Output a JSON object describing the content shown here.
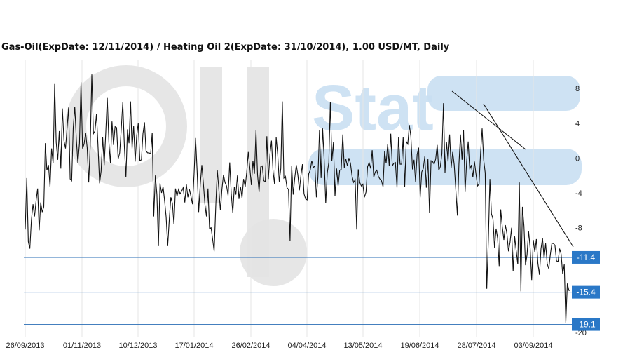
{
  "title": "Gas-Oil(ExpDate: 12/11/2014) / Heating Oil 2(ExpDate: 31/10/2014), 1.00 USD/MT, Daily",
  "watermark": {
    "text1": "Oil",
    "text2": "Stat",
    "color": "#c9dff2",
    "gray": "#e3e3e3"
  },
  "colors": {
    "series": "#111111",
    "hline": "#2a6db5",
    "badge": "#2a78c7",
    "grid": "#e6e6e6"
  },
  "chart_data": {
    "type": "line",
    "ylim": [
      -20,
      10
    ],
    "x_date_range": [
      "26/09/2013",
      "06/10/2014"
    ],
    "x_tick_labels": [
      "26/09/2013",
      "01/11/2013",
      "10/12/2013",
      "17/01/2014",
      "26/02/2014",
      "04/04/2014",
      "13/05/2014",
      "19/06/2014",
      "28/07/2014",
      "03/09/2014"
    ],
    "y_tick_values": [
      8,
      4,
      0,
      -4,
      -8,
      -20
    ],
    "y_tick_labels": [
      "8",
      "4",
      "0",
      "-4",
      "-8",
      "-20"
    ],
    "grid": "vertical",
    "series": [
      {
        "values": [
          -8.2,
          -2.3,
          -9.6,
          -10.4,
          -7.1,
          -5.3,
          -6.7,
          -4.9,
          -3.5,
          -8.3,
          -5.1,
          -6.2,
          -5.6,
          1.7,
          -1.4,
          -0.8,
          -3.3,
          1.1,
          -0.6,
          8.5,
          1.8,
          -0.2,
          3.1,
          -1.2,
          5.7,
          2.0,
          1.1,
          3.4,
          5.8,
          -2.4,
          -2.6,
          3.5,
          5.9,
          2.2,
          -0.6,
          1.7,
          8.7,
          1.1,
          1.6,
          2.9,
          1.2,
          -2.8,
          1.5,
          9.6,
          2.8,
          3.1,
          5.1,
          1.3,
          -2.9,
          -1.5,
          2.4,
          -0.8,
          2.9,
          6.9,
          1.8,
          -0.6,
          4.2,
          1.5,
          3.6,
          3.5,
          -0.1,
          0.6,
          3.3,
          6.4,
          1.3,
          -2.2,
          3.3,
          1.7,
          6.5,
          1.1,
          3.7,
          -0.4,
          2.6,
          4.0,
          -0.3,
          -0.2,
          2.8,
          4.1,
          0.8,
          0.6,
          0.6,
          0.5,
          2.9,
          -6.7,
          -2.0,
          -4.2,
          -10.1,
          -2.9,
          -4.0,
          -3.3,
          -4.9,
          -6.8,
          -10.1,
          -7.0,
          -4.5,
          -5.2,
          -7.6,
          -3.5,
          -4.4,
          -3.6,
          -4.1,
          -3.8,
          -3.4,
          -5.1,
          -3.0,
          -4.5,
          -3.6,
          -4.4,
          -5.3,
          -1.9,
          2.3,
          -1.5,
          -6.2,
          -3.0,
          -0.8,
          -2.9,
          -5.3,
          -6.7,
          -3.5,
          -8.1,
          -8.0,
          -9.3,
          -10.7,
          -5.5,
          -1.4,
          -3.6,
          -6.0,
          -3.6,
          -1.9,
          -2.8,
          -3.2,
          -4.3,
          -0.5,
          -4.1,
          -6.3,
          -3.3,
          -4.2,
          -2.0,
          -4.7,
          -3.3,
          -4.6,
          -2.4,
          -3.3,
          -1.6,
          0.7,
          -1.1,
          -3.1,
          -0.3,
          -1.8,
          3.2,
          -1.9,
          -3.9,
          -1.0,
          -0.9,
          -2.6,
          -2.7,
          2.5,
          -2.4,
          0.4,
          2.0,
          -1.5,
          -3.0,
          2.4,
          0.4,
          -2.7,
          -1.2,
          6.5,
          -2.3,
          -2.1,
          -3.4,
          -3.6,
          -9.5,
          -0.9,
          -4.2,
          -2.3,
          -0.8,
          -1.9,
          -3.7,
          -2.0,
          -0.7,
          -4.1,
          -4.7,
          -4.8,
          -1.8,
          -1.4,
          -0.3,
          -1.1,
          -0.9,
          -4.5,
          -2.2,
          3.2,
          -2.3,
          3.4,
          -0.2,
          -5.2,
          -1.7,
          -0.5,
          6.4,
          -0.3,
          1.8,
          -4.4,
          -1.2,
          -3.2,
          -1.4,
          -1.3,
          2.7,
          -1.1,
          -0.1,
          -0.9,
          0.0,
          -0.6,
          -2.1,
          -2.8,
          -2.5,
          -8.2,
          -1.3,
          -2.8,
          -3.2,
          -3.0,
          -4.5,
          -3.9,
          -1.0,
          -0.5,
          -1.2,
          0.9,
          -2.2,
          -1.6,
          -1.4,
          -2.1,
          -2.4,
          -2.6,
          -3.3,
          0.8,
          -0.6,
          1.6,
          -0.9,
          2.8,
          -0.9,
          -0.6,
          -0.5,
          -3.4,
          2.4,
          -0.7,
          -0.7,
          2.4,
          -3.3,
          1.9,
          1.6,
          3.8,
          2.5,
          -1.3,
          -0.2,
          -2.7,
          0.4,
          1.2,
          -4.5,
          -1.6,
          -1.2,
          0.2,
          -3.4,
          -0.1,
          -6.3,
          -0.3,
          -0.4,
          -0.7,
          -0.1,
          1.5,
          -1.4,
          -1.0,
          0.5,
          6.3,
          -1.7,
          1.8,
          -0.4,
          2.7,
          -1.1,
          0.7,
          -0.8,
          -3.6,
          -6.6,
          -0.7,
          2.7,
          -0.2,
          3.2,
          -3.9,
          -0.4,
          1.9,
          -1.3,
          -0.8,
          -2.2,
          -0.4,
          -1.8,
          -3.2,
          -3.0,
          0.6,
          3.4,
          -0.2,
          -1.7,
          -15.0,
          -9.4,
          -2.4,
          -6.4,
          -7.0,
          -10.3,
          -8.1,
          -9.2,
          -12.4,
          -5.9,
          -7.9,
          -9.4,
          -7.7,
          -8.7,
          -10.7,
          -9.7,
          -8.0,
          -13.0,
          -9.0,
          -10.6,
          -12.2,
          -2.8,
          -15.3,
          -5.6,
          -7.8,
          -12.3,
          -11.1,
          -8.4,
          -10.3,
          -14.0,
          -9.4,
          -10.8,
          -9.3,
          -12.1,
          -13.4,
          -10.4,
          -9.2,
          -11.5,
          -9.8,
          -12.1,
          -12.7,
          -11.1,
          -9.8,
          -9.8,
          -10.0,
          -11.8,
          -11.9,
          -10.4,
          -11.0,
          -13.3,
          -12.2,
          -18.9,
          -14.4,
          -15.2,
          -15.2
        ]
      }
    ],
    "hlines": [
      -11.4,
      -15.4,
      -19.1
    ],
    "hline_labels": [
      "-11.4",
      "-15.4",
      "-19.1"
    ]
  }
}
